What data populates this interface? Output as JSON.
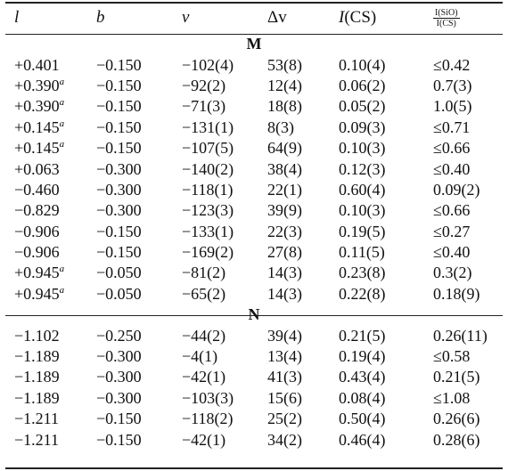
{
  "header": {
    "l": "l",
    "b": "b",
    "v": "v",
    "dv": "Δv",
    "ics_var": "I",
    "ics_tag": "(CS)",
    "ratio_num": "I(SiO)",
    "ratio_den": "I(CS)"
  },
  "sections": [
    {
      "label": "M",
      "rows": [
        {
          "l": "+0.401",
          "sup": "",
          "b": "−0.150",
          "v": "−102(4)",
          "dv": "53(8)",
          "ics": "0.10(4)",
          "ratio": "≤0.42"
        },
        {
          "l": "+0.390",
          "sup": "a",
          "b": "−0.150",
          "v": "−92(2)",
          "dv": "12(4)",
          "ics": "0.06(2)",
          "ratio": "0.7(3)"
        },
        {
          "l": "+0.390",
          "sup": "a",
          "b": "−0.150",
          "v": "−71(3)",
          "dv": "18(8)",
          "ics": "0.05(2)",
          "ratio": "1.0(5)"
        },
        {
          "l": "+0.145",
          "sup": "a",
          "b": "−0.150",
          "v": "−131(1)",
          "dv": "8(3)",
          "ics": "0.09(3)",
          "ratio": "≤0.71"
        },
        {
          "l": "+0.145",
          "sup": "a",
          "b": "−0.150",
          "v": "−107(5)",
          "dv": "64(9)",
          "ics": "0.10(3)",
          "ratio": "≤0.66"
        },
        {
          "l": "+0.063",
          "sup": "",
          "b": "−0.300",
          "v": "−140(2)",
          "dv": "38(4)",
          "ics": "0.12(3)",
          "ratio": "≤0.40"
        },
        {
          "l": "−0.460",
          "sup": "",
          "b": "−0.300",
          "v": "−118(1)",
          "dv": "22(1)",
          "ics": "0.60(4)",
          "ratio": "0.09(2)"
        },
        {
          "l": "−0.829",
          "sup": "",
          "b": "−0.300",
          "v": "−123(3)",
          "dv": "39(9)",
          "ics": "0.10(3)",
          "ratio": "≤0.66"
        },
        {
          "l": "−0.906",
          "sup": "",
          "b": "−0.150",
          "v": "−133(1)",
          "dv": "22(3)",
          "ics": "0.19(5)",
          "ratio": "≤0.27"
        },
        {
          "l": "−0.906",
          "sup": "",
          "b": "−0.150",
          "v": "−169(2)",
          "dv": "27(8)",
          "ics": "0.11(5)",
          "ratio": "≤0.40"
        },
        {
          "l": "+0.945",
          "sup": "a",
          "b": "−0.050",
          "v": "−81(2)",
          "dv": "14(3)",
          "ics": "0.23(8)",
          "ratio": "0.3(2)"
        },
        {
          "l": "+0.945",
          "sup": "a",
          "b": "−0.050",
          "v": "−65(2)",
          "dv": "14(3)",
          "ics": "0.22(8)",
          "ratio": "0.18(9)"
        }
      ]
    },
    {
      "label": "N",
      "rows": [
        {
          "l": "−1.102",
          "sup": "",
          "b": "−0.250",
          "v": "−44(2)",
          "dv": "39(4)",
          "ics": "0.21(5)",
          "ratio": "0.26(11)"
        },
        {
          "l": "−1.189",
          "sup": "",
          "b": "−0.300",
          "v": "−4(1)",
          "dv": "13(4)",
          "ics": "0.19(4)",
          "ratio": "≤0.58"
        },
        {
          "l": "−1.189",
          "sup": "",
          "b": "−0.300",
          "v": "−42(1)",
          "dv": "41(3)",
          "ics": "0.43(4)",
          "ratio": "0.21(5)"
        },
        {
          "l": "−1.189",
          "sup": "",
          "b": "−0.300",
          "v": "−103(3)",
          "dv": "15(6)",
          "ics": "0.08(4)",
          "ratio": "≤1.08"
        },
        {
          "l": "−1.211",
          "sup": "",
          "b": "−0.150",
          "v": "−118(2)",
          "dv": "25(2)",
          "ics": "0.50(4)",
          "ratio": "0.26(6)"
        },
        {
          "l": "−1.211",
          "sup": "",
          "b": "−0.150",
          "v": "−42(1)",
          "dv": "34(2)",
          "ics": "0.46(4)",
          "ratio": "0.28(6)"
        }
      ]
    }
  ]
}
